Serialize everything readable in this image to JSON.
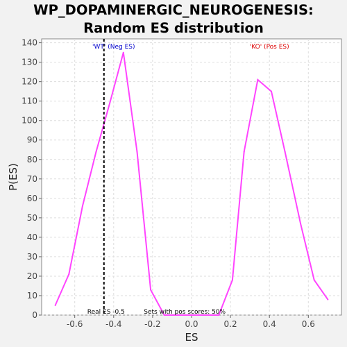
{
  "chart_data": {
    "type": "line",
    "title": "WP_DOPAMINERGIC_NEUROGENESIS: Random ES distribution",
    "xlabel": "ES",
    "ylabel": "P(ES)",
    "xlim": [
      -0.77,
      0.77
    ],
    "ylim": [
      0,
      142
    ],
    "xticks": [
      -0.6,
      -0.4,
      -0.2,
      0.0,
      0.2,
      0.4,
      0.6
    ],
    "xtick_labels": [
      "-0.6",
      "-0.4",
      "-0.2",
      "0.0",
      "0.2",
      "0.4",
      "0.6"
    ],
    "yticks": [
      0,
      10,
      20,
      30,
      40,
      50,
      60,
      70,
      80,
      90,
      100,
      110,
      120,
      130,
      140
    ],
    "grid": true,
    "series": [
      {
        "color": "#ff44ff",
        "x": [
          -0.7,
          -0.63,
          -0.56,
          -0.49,
          -0.42,
          -0.35,
          -0.28,
          -0.21,
          -0.14,
          -0.07,
          0.0,
          0.07,
          0.14,
          0.21,
          0.27,
          0.34,
          0.41,
          0.48,
          0.56,
          0.63,
          0.7
        ],
        "y": [
          5,
          21,
          56,
          84,
          109,
          135,
          84,
          13,
          0,
          0,
          0,
          0,
          0,
          18,
          84,
          121,
          115,
          84,
          47,
          18,
          8
        ]
      }
    ],
    "real_es": -0.45,
    "annotations": {
      "neg_label": "'WT' (Neg ES)",
      "pos_label": "'KO' (Pos ES)",
      "real_es_label": "Real ES -0.5",
      "pos_scores_label": "Sets with pos scores: 50%"
    },
    "colors": {
      "neg": "#0000cc",
      "pos": "#dd0000",
      "line": "#ff44ff",
      "marker": "#000000"
    }
  }
}
